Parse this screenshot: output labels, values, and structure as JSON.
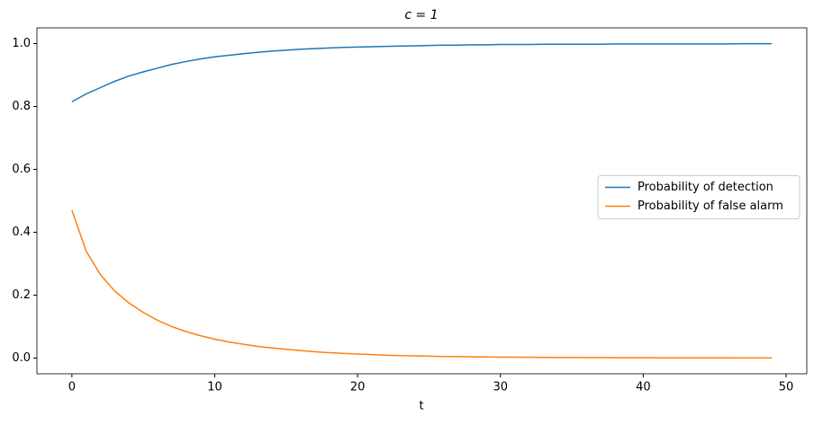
{
  "chart_data": {
    "type": "line",
    "title": "c = 1",
    "x_label": "t",
    "x": [
      0,
      1,
      2,
      3,
      4,
      5,
      6,
      7,
      8,
      9,
      10,
      11,
      12,
      13,
      14,
      15,
      16,
      17,
      18,
      19,
      20,
      21,
      22,
      23,
      24,
      25,
      26,
      27,
      28,
      29,
      30,
      31,
      32,
      33,
      34,
      35,
      36,
      37,
      38,
      39,
      40,
      41,
      42,
      43,
      44,
      45,
      46,
      47,
      48,
      49
    ],
    "series": [
      {
        "name": "Probability of detection",
        "color": "#1f77b4",
        "values": [
          0.815,
          0.84,
          0.86,
          0.88,
          0.897,
          0.91,
          0.922,
          0.934,
          0.943,
          0.951,
          0.958,
          0.963,
          0.968,
          0.972,
          0.976,
          0.979,
          0.982,
          0.984,
          0.986,
          0.988,
          0.989,
          0.99,
          0.991,
          0.992,
          0.993,
          0.994,
          0.995,
          0.995,
          0.996,
          0.996,
          0.997,
          0.997,
          0.997,
          0.998,
          0.998,
          0.998,
          0.998,
          0.998,
          0.999,
          0.999,
          0.999,
          0.999,
          0.999,
          0.999,
          0.999,
          0.999,
          0.999,
          0.9995,
          0.9995,
          0.9995
        ]
      },
      {
        "name": "Probability of false alarm",
        "color": "#ff7f0e",
        "values": [
          0.47,
          0.34,
          0.265,
          0.213,
          0.175,
          0.145,
          0.12,
          0.1,
          0.084,
          0.071,
          0.06,
          0.051,
          0.044,
          0.037,
          0.032,
          0.028,
          0.024,
          0.02,
          0.017,
          0.015,
          0.013,
          0.011,
          0.009,
          0.008,
          0.007,
          0.006,
          0.005,
          0.0045,
          0.004,
          0.0035,
          0.003,
          0.0027,
          0.0024,
          0.0021,
          0.0019,
          0.0017,
          0.0015,
          0.0013,
          0.0012,
          0.0011,
          0.001,
          0.0009,
          0.0008,
          0.0007,
          0.0007,
          0.0006,
          0.0006,
          0.0005,
          0.0005,
          0.0005
        ]
      }
    ],
    "xlim": [
      -2.45,
      51.45
    ],
    "xticks": [
      0,
      10,
      20,
      30,
      40,
      50
    ],
    "ylim": [
      -0.05,
      1.05
    ],
    "yticks": [
      {
        "value": 0,
        "label": "0.0"
      },
      {
        "value": 0.2,
        "label": "0.2"
      },
      {
        "value": 0.4,
        "label": "0.4"
      },
      {
        "value": 0.6,
        "label": "0.6"
      },
      {
        "value": 0.8,
        "label": "0.8"
      },
      {
        "value": 1,
        "label": "1.0"
      }
    ],
    "legend": "center right"
  }
}
